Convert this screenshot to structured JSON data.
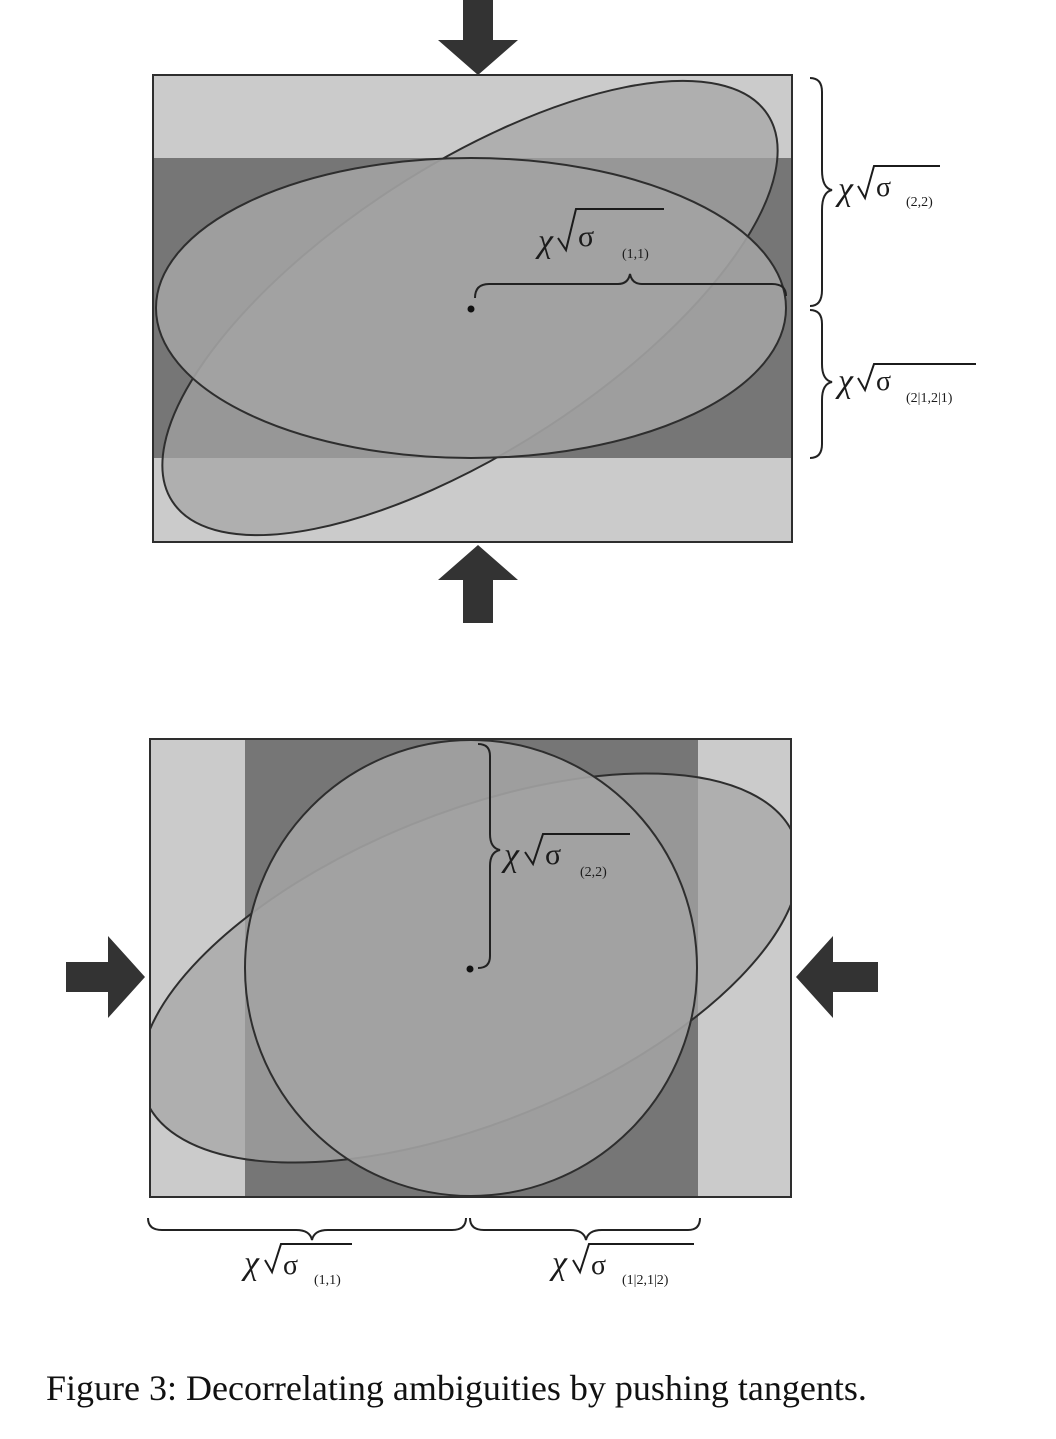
{
  "caption": "Figure 3: Decorrelating ambiguities by pushing tangents.",
  "colors": {
    "outer_band": "#cbcbcb",
    "dark_band": "#767676",
    "ellipse_fill": "#a3a3a3",
    "outline": "#2e2e2e",
    "arrow": "#333333"
  },
  "top_panel": {
    "label_inner": {
      "symbol": "χ",
      "sub": "(1,1)"
    },
    "label_upper": {
      "symbol": "χ",
      "sub": "(2,2)"
    },
    "label_lower": {
      "symbol": "χ",
      "sub": "(2|1,2|1)"
    }
  },
  "bottom_panel": {
    "label_inner": {
      "symbol": "χ",
      "sub": "(2,2)"
    },
    "label_left": {
      "symbol": "χ",
      "sub": "(1,1)"
    },
    "label_right": {
      "symbol": "χ",
      "sub": "(1|2,1|2)"
    }
  }
}
